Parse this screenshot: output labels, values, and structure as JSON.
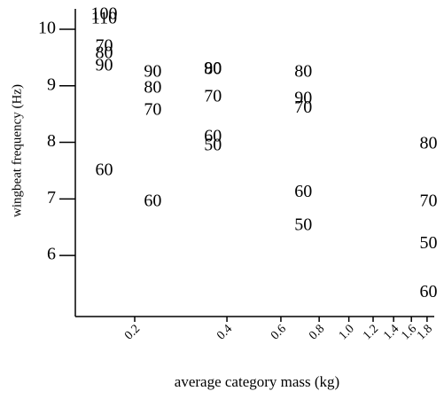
{
  "chart_data": {
    "type": "scatter",
    "xlabel": "average category mass (kg)",
    "ylabel": "wingbeat frequency (Hz)",
    "xscale": "log",
    "xlim": [
      0.128,
      1.9
    ],
    "ylim": [
      4.92,
      10.36
    ],
    "xticks": [
      0.2,
      0.4,
      0.6,
      0.8,
      {
        "value": 1,
        "label": "1.0"
      },
      1.2,
      1.4,
      1.6,
      1.8
    ],
    "yticks": [
      6,
      7,
      8,
      9,
      10
    ],
    "series": [
      {
        "color": "#000000",
        "labels": [
          "100",
          "110",
          "70",
          "80",
          "90",
          "60",
          "90",
          "80",
          "70",
          "60",
          "90",
          "80",
          "70",
          "60",
          "50",
          "80",
          "90",
          "70",
          "60",
          "50",
          "80",
          "70",
          "50",
          "60"
        ],
        "x": [
          0.159,
          0.159,
          0.159,
          0.159,
          0.159,
          0.159,
          0.229,
          0.229,
          0.229,
          0.229,
          0.36,
          0.36,
          0.36,
          0.36,
          0.36,
          0.71,
          0.71,
          0.71,
          0.71,
          0.71,
          1.82,
          1.82,
          1.82,
          1.82
        ],
        "values": [
          10.25,
          10.17,
          9.69,
          9.56,
          9.34,
          7.49,
          9.23,
          8.95,
          8.56,
          6.94,
          9.29,
          9.28,
          8.79,
          8.09,
          7.93,
          9.23,
          8.76,
          8.6,
          7.11,
          6.52,
          7.96,
          6.94,
          6.2,
          5.34
        ]
      }
    ]
  }
}
